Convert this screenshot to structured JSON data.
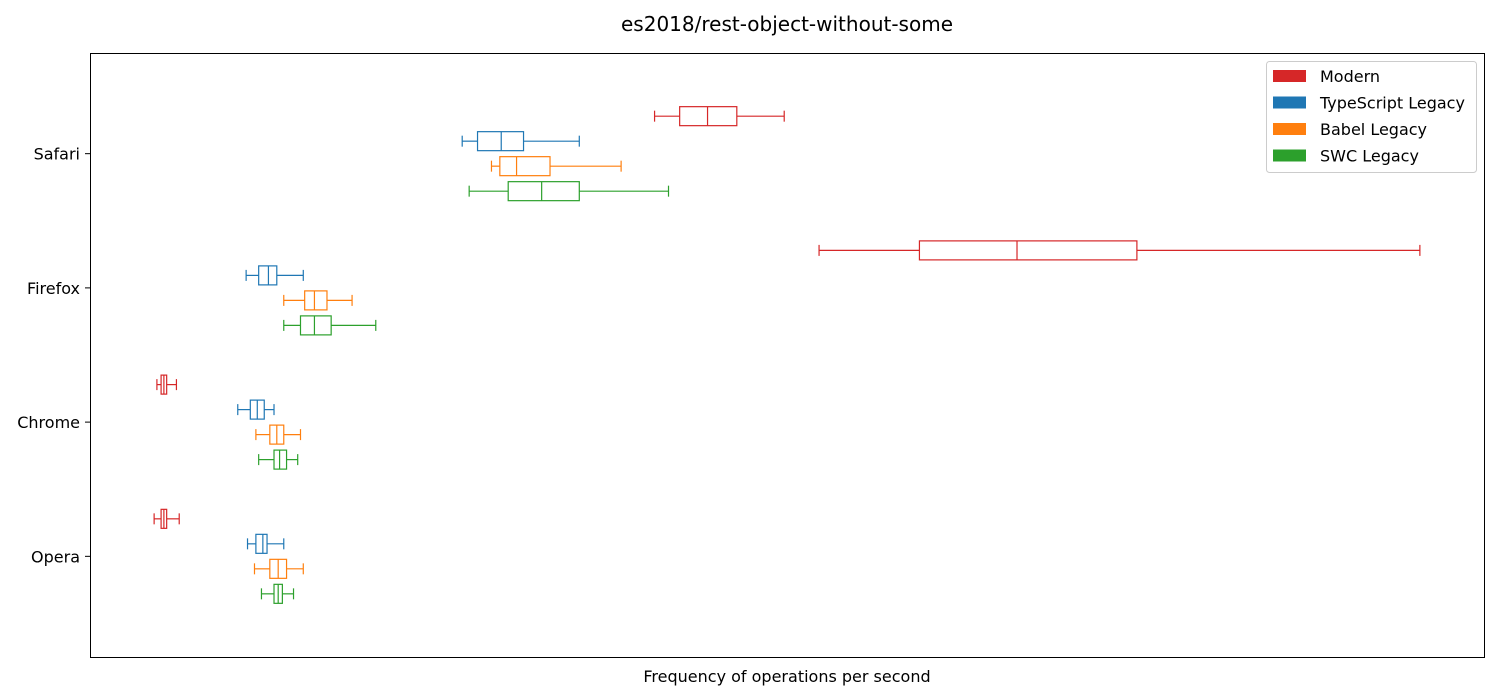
{
  "chart_data": {
    "type": "boxplot",
    "orientation": "horizontal",
    "title": "es2018/rest-object-without-some",
    "xlabel": "Frequency of operations per second",
    "ylabel": "",
    "x_ticks_shown": false,
    "grid": false,
    "legend_position": "top-right",
    "xlim": [
      0,
      1000
    ],
    "categories": [
      "Safari",
      "Firefox",
      "Chrome",
      "Opera"
    ],
    "series": [
      {
        "name": "Modern",
        "color": "#d62728",
        "boxes": [
          {
            "category": "Safari",
            "whislo": 405,
            "q1": 423,
            "med": 443,
            "q3": 464,
            "whishi": 498
          },
          {
            "category": "Firefox",
            "whislo": 523,
            "q1": 595,
            "med": 665,
            "q3": 751,
            "whishi": 954
          },
          {
            "category": "Chrome",
            "whislo": 48,
            "q1": 51,
            "med": 53,
            "q3": 55,
            "whishi": 62
          },
          {
            "category": "Opera",
            "whislo": 46,
            "q1": 51,
            "med": 53,
            "q3": 55,
            "whishi": 64
          }
        ]
      },
      {
        "name": "TypeScript Legacy",
        "color": "#1f77b4",
        "boxes": [
          {
            "category": "Safari",
            "whislo": 267,
            "q1": 278,
            "med": 295,
            "q3": 311,
            "whishi": 351
          },
          {
            "category": "Firefox",
            "whislo": 112,
            "q1": 121,
            "med": 128,
            "q3": 134,
            "whishi": 153
          },
          {
            "category": "Chrome",
            "whislo": 106,
            "q1": 115,
            "med": 120,
            "q3": 125,
            "whishi": 132
          },
          {
            "category": "Opera",
            "whislo": 113,
            "q1": 119,
            "med": 124,
            "q3": 127,
            "whishi": 139
          }
        ]
      },
      {
        "name": "Babel Legacy",
        "color": "#ff7f0e",
        "boxes": [
          {
            "category": "Safari",
            "whislo": 288,
            "q1": 294,
            "med": 306,
            "q3": 330,
            "whishi": 381
          },
          {
            "category": "Firefox",
            "whislo": 139,
            "q1": 154,
            "med": 161,
            "q3": 170,
            "whishi": 188
          },
          {
            "category": "Chrome",
            "whislo": 119,
            "q1": 129,
            "med": 134,
            "q3": 139,
            "whishi": 151
          },
          {
            "category": "Opera",
            "whislo": 118,
            "q1": 129,
            "med": 135,
            "q3": 141,
            "whishi": 153
          }
        ]
      },
      {
        "name": "SWC Legacy",
        "color": "#2ca02c",
        "boxes": [
          {
            "category": "Safari",
            "whislo": 272,
            "q1": 300,
            "med": 324,
            "q3": 351,
            "whishi": 415
          },
          {
            "category": "Firefox",
            "whislo": 139,
            "q1": 151,
            "med": 161,
            "q3": 173,
            "whishi": 205
          },
          {
            "category": "Chrome",
            "whislo": 121,
            "q1": 132,
            "med": 136,
            "q3": 141,
            "whishi": 149
          },
          {
            "category": "Opera",
            "whislo": 123,
            "q1": 132,
            "med": 135,
            "q3": 138,
            "whishi": 146
          }
        ]
      }
    ]
  }
}
